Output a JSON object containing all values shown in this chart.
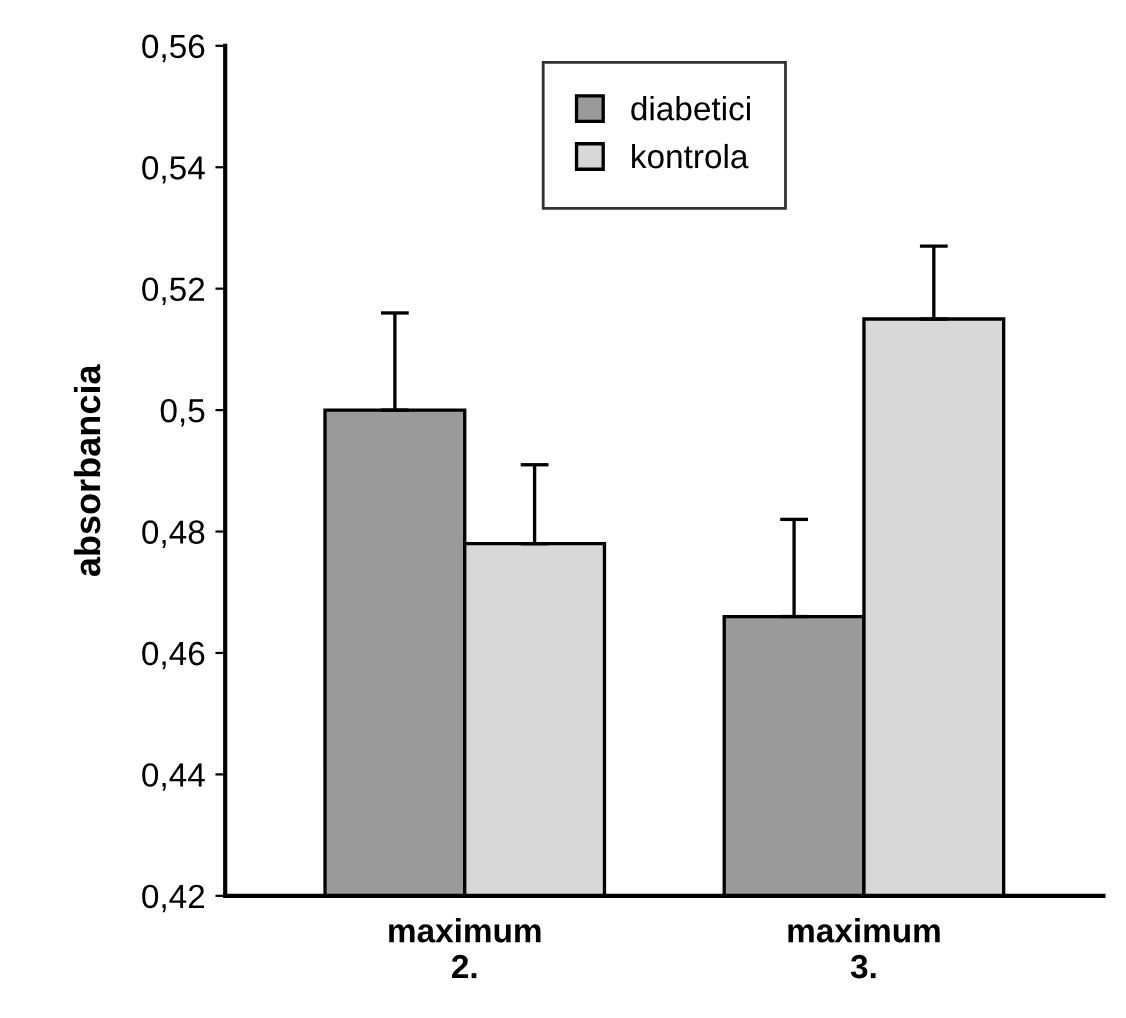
{
  "chart_data": {
    "type": "bar",
    "ylabel": "absorbancia",
    "categories": [
      "maximum\n2.",
      "maximum\n3."
    ],
    "series": [
      {
        "name": "diabetici",
        "color": "#9a9a9a",
        "values": [
          0.5,
          0.466
        ],
        "errors": [
          [
            0.5,
            0.516
          ],
          [
            0.466,
            0.482
          ]
        ]
      },
      {
        "name": "kontrola",
        "color": "#d8d8d8",
        "values": [
          0.478,
          0.515
        ],
        "errors": [
          [
            0.478,
            0.491
          ],
          [
            0.515,
            0.527
          ]
        ]
      }
    ],
    "ylim": [
      0.42,
      0.56
    ],
    "yticks": [
      {
        "value": 0.42,
        "label": "0,42"
      },
      {
        "value": 0.44,
        "label": "0,44"
      },
      {
        "value": 0.46,
        "label": "0,46"
      },
      {
        "value": 0.48,
        "label": "0,48"
      },
      {
        "value": 0.5,
        "label": "0,5"
      },
      {
        "value": 0.52,
        "label": "0,52"
      },
      {
        "value": 0.54,
        "label": "0,54"
      },
      {
        "value": 0.56,
        "label": "0,56"
      }
    ],
    "legend": "top",
    "grid": false
  }
}
